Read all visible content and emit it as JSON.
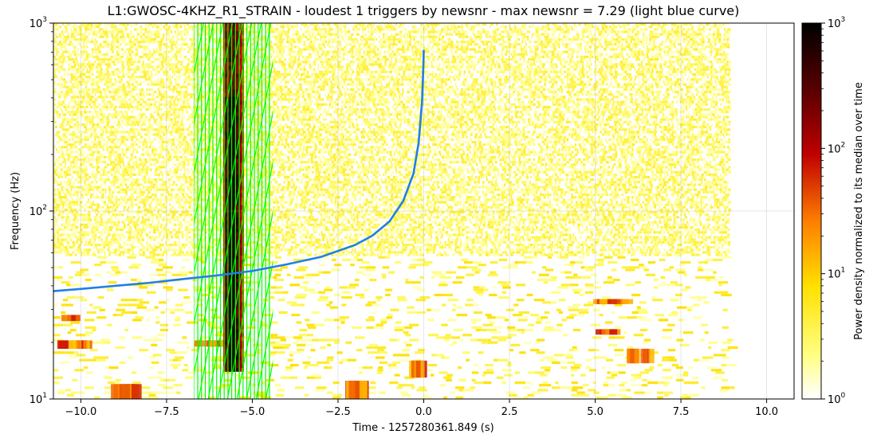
{
  "chart_data": {
    "type": "heatmap",
    "title": "L1:GWOSC-4KHZ_R1_STRAIN - loudest 1 triggers by newsnr - max newsnr = 7.29 (light blue curve)",
    "xlabel": "Time - 1257280361.849 (s)",
    "ylabel": "Frequency (Hz)",
    "colorbar_label": "Power density normalized to its median over time",
    "xlim": [
      -10.8,
      10.8
    ],
    "ylim": [
      10,
      1000
    ],
    "yscale": "log",
    "grid": true,
    "x_ticks": [
      {
        "value": -10.0,
        "label": "−10.0"
      },
      {
        "value": -7.5,
        "label": "−7.5"
      },
      {
        "value": -5.0,
        "label": "−5.0"
      },
      {
        "value": -2.5,
        "label": "−2.5"
      },
      {
        "value": 0.0,
        "label": "0.0"
      },
      {
        "value": 2.5,
        "label": "2.5"
      },
      {
        "value": 5.0,
        "label": "5.0"
      },
      {
        "value": 7.5,
        "label": "7.5"
      },
      {
        "value": 10.0,
        "label": "10.0"
      }
    ],
    "y_ticks": [
      {
        "value": 10,
        "base": "10",
        "exp": "1"
      },
      {
        "value": 100,
        "base": "10",
        "exp": "2"
      },
      {
        "value": 1000,
        "base": "10",
        "exp": "3"
      }
    ],
    "colorbar": {
      "min": 1,
      "max": 1000,
      "scale": "log",
      "colormap": "afmhot_r",
      "ticks": [
        {
          "value": 1,
          "base": "10",
          "exp": "0"
        },
        {
          "value": 10,
          "base": "10",
          "exp": "1"
        },
        {
          "value": 100,
          "base": "10",
          "exp": "2"
        },
        {
          "value": 1000,
          "base": "10",
          "exp": "3"
        }
      ]
    },
    "spectrogram_time_range": [
      -10.8,
      8.9
    ],
    "glitch": {
      "t_min": -5.85,
      "t_max": -5.25,
      "f_min": 14,
      "f_max": 1000
    },
    "loud_patches": [
      {
        "t_min": -10.7,
        "t_max": -9.9,
        "f_min": 18.5,
        "f_max": 20.5
      },
      {
        "t_min": -10.6,
        "t_max": -10.1,
        "f_min": 26,
        "f_max": 28
      },
      {
        "t_min": 5.9,
        "t_max": 6.6,
        "f_min": 15.5,
        "f_max": 18.5
      },
      {
        "t_min": 4.9,
        "t_max": 5.8,
        "f_min": 32,
        "f_max": 34
      },
      {
        "t_min": 5.0,
        "t_max": 5.6,
        "f_min": 22,
        "f_max": 23.5
      },
      {
        "t_min": -9.2,
        "t_max": -8.4,
        "f_min": 10,
        "f_max": 12
      },
      {
        "t_min": -2.3,
        "t_max": -1.7,
        "f_min": 10,
        "f_max": 12.5
      },
      {
        "t_min": -0.5,
        "t_max": 0.0,
        "f_min": 13,
        "f_max": 16
      },
      {
        "t_min": -6.7,
        "t_max": -5.9,
        "f_min": 19,
        "f_max": 20.5
      }
    ],
    "trigger_curve": {
      "label": "light blue curve",
      "color": "#1f7fe8",
      "newsnr": 7.29,
      "x": [
        -10.8,
        -10.0,
        -9.0,
        -8.0,
        -7.0,
        -6.0,
        -5.0,
        -4.0,
        -3.0,
        -2.0,
        -1.5,
        -1.0,
        -0.6,
        -0.3,
        -0.15,
        -0.05,
        -0.01,
        0.0
      ],
      "y": [
        37.5,
        38.5,
        40.0,
        41.5,
        43.5,
        45.5,
        48.0,
        52.0,
        57.0,
        66.0,
        74.0,
        88.0,
        113.0,
        158.0,
        230.0,
        380.0,
        600.0,
        720.0
      ]
    },
    "trigger_windows": {
      "color": "#00ff00",
      "start": -6.7,
      "end": -4.4,
      "spacing": 0.11,
      "slope_decades_per_s": 0.95,
      "diag_spacing": 0.28
    }
  }
}
